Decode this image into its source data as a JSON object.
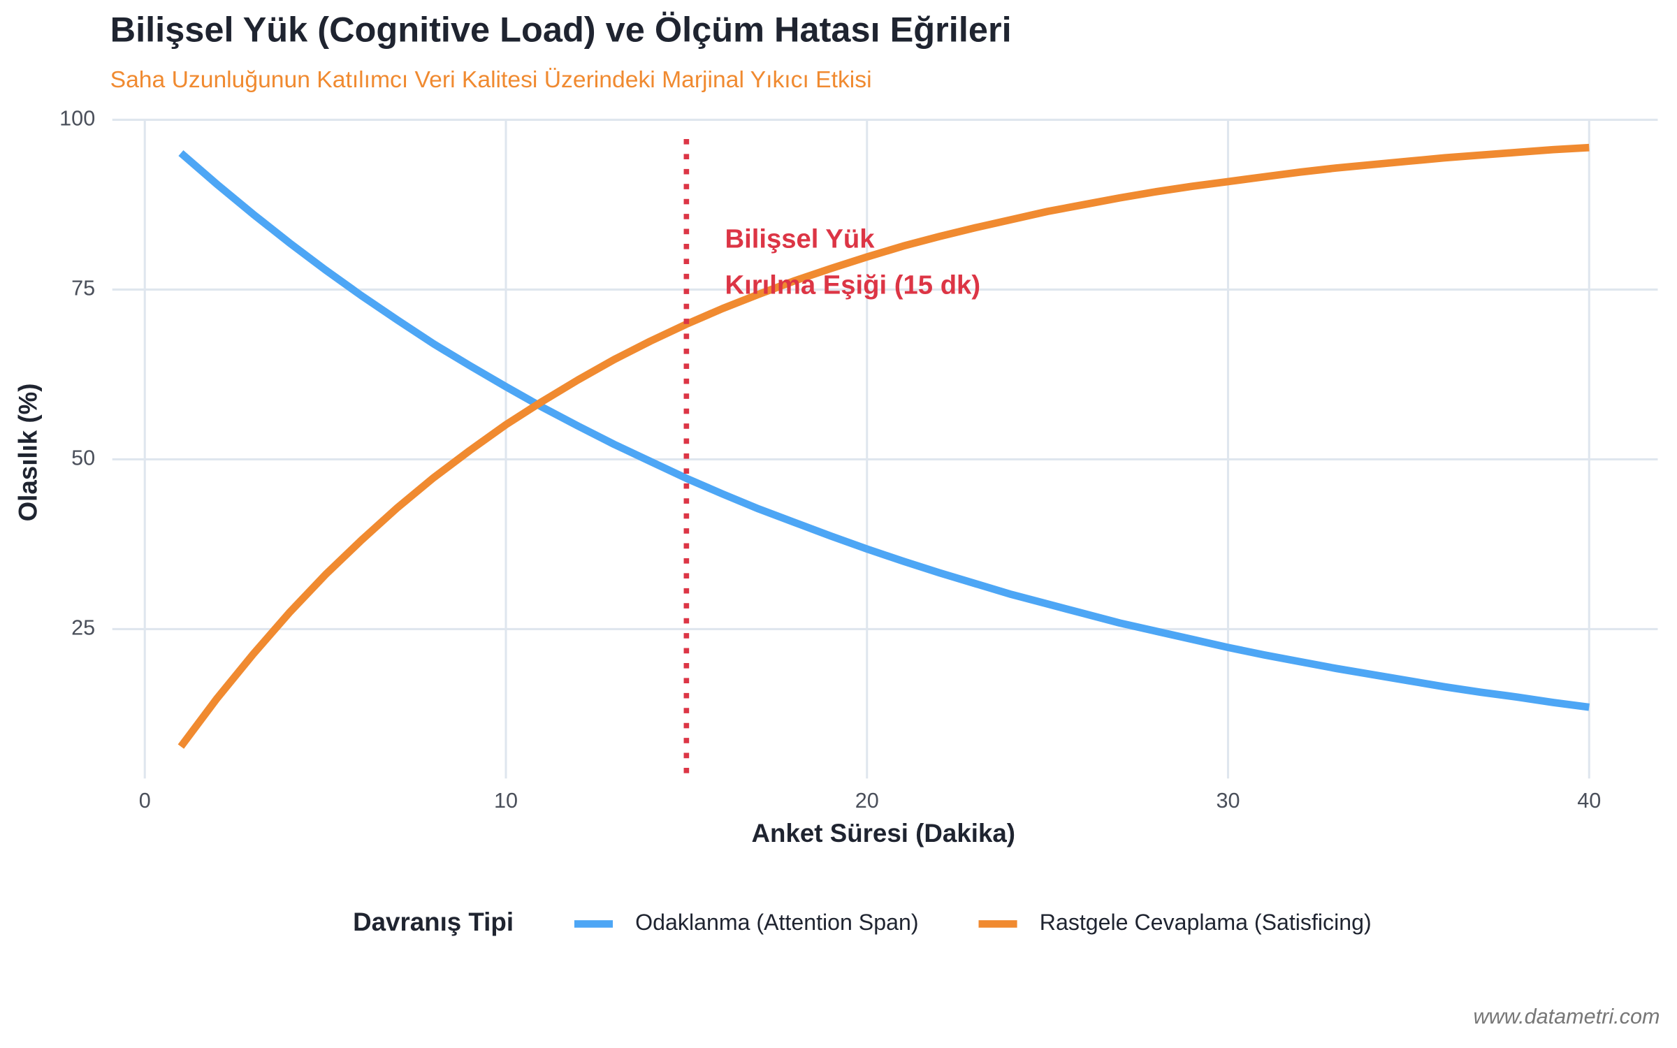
{
  "chart_data": {
    "type": "line",
    "title": "Bilişsel Yük (Cognitive Load) ve Ölçüm Hatası Eğrileri",
    "subtitle": "Saha Uzunluğunun Katılımcı Veri Kalitesi Üzerindeki Marjinal Yıkıcı Etkisi",
    "x_label": "Anket Süresi (Dakika)",
    "y_label": "Olasılık (%)",
    "x": [
      1,
      2,
      3,
      4,
      5,
      6,
      7,
      8,
      9,
      10,
      11,
      12,
      13,
      14,
      15,
      16,
      17,
      18,
      19,
      20,
      21,
      22,
      23,
      24,
      25,
      26,
      27,
      28,
      29,
      30,
      31,
      32,
      33,
      34,
      35,
      36,
      37,
      38,
      39,
      40
    ],
    "series": [
      {
        "name": "Odaklanma (Attention Span)",
        "color": "#4da6f5",
        "values": [
          95.1,
          90.5,
          86.1,
          81.9,
          77.9,
          74.1,
          70.5,
          67.0,
          63.8,
          60.7,
          57.7,
          54.9,
          52.2,
          49.7,
          47.2,
          44.9,
          42.7,
          40.7,
          38.7,
          36.8,
          35.0,
          33.3,
          31.7,
          30.1,
          28.7,
          27.3,
          25.9,
          24.7,
          23.5,
          22.3,
          21.2,
          20.2,
          19.2,
          18.3,
          17.4,
          16.5,
          15.7,
          15.0,
          14.2,
          13.5
        ]
      },
      {
        "name": "Rastgele Cevaplama (Satisficing)",
        "color": "#f08a30",
        "values": [
          7.7,
          14.8,
          21.3,
          27.4,
          33.0,
          38.1,
          42.9,
          47.3,
          51.3,
          55.1,
          58.5,
          61.7,
          64.7,
          67.4,
          69.9,
          72.2,
          74.3,
          76.3,
          78.1,
          79.8,
          81.4,
          82.8,
          84.1,
          85.3,
          86.5,
          87.5,
          88.5,
          89.4,
          90.2,
          90.9,
          91.6,
          92.3,
          92.9,
          93.4,
          93.9,
          94.4,
          94.8,
          95.2,
          95.6,
          95.9
        ]
      }
    ],
    "xlim": [
      -0.9,
      41.9
    ],
    "xticks": [
      0,
      10,
      20,
      30,
      40
    ],
    "ylim": [
      3,
      100
    ],
    "yticks": [
      25,
      50,
      75,
      100
    ],
    "grid": true,
    "threshold": {
      "x": 15,
      "color": "#dc3545",
      "label_lines": [
        "Bilişsel Yük",
        "Kırılma Eşiği (15 dk)"
      ]
    },
    "legend_title": "Davranış Tipi",
    "legend_position": "bottom",
    "caption": "www.datametri.com"
  }
}
